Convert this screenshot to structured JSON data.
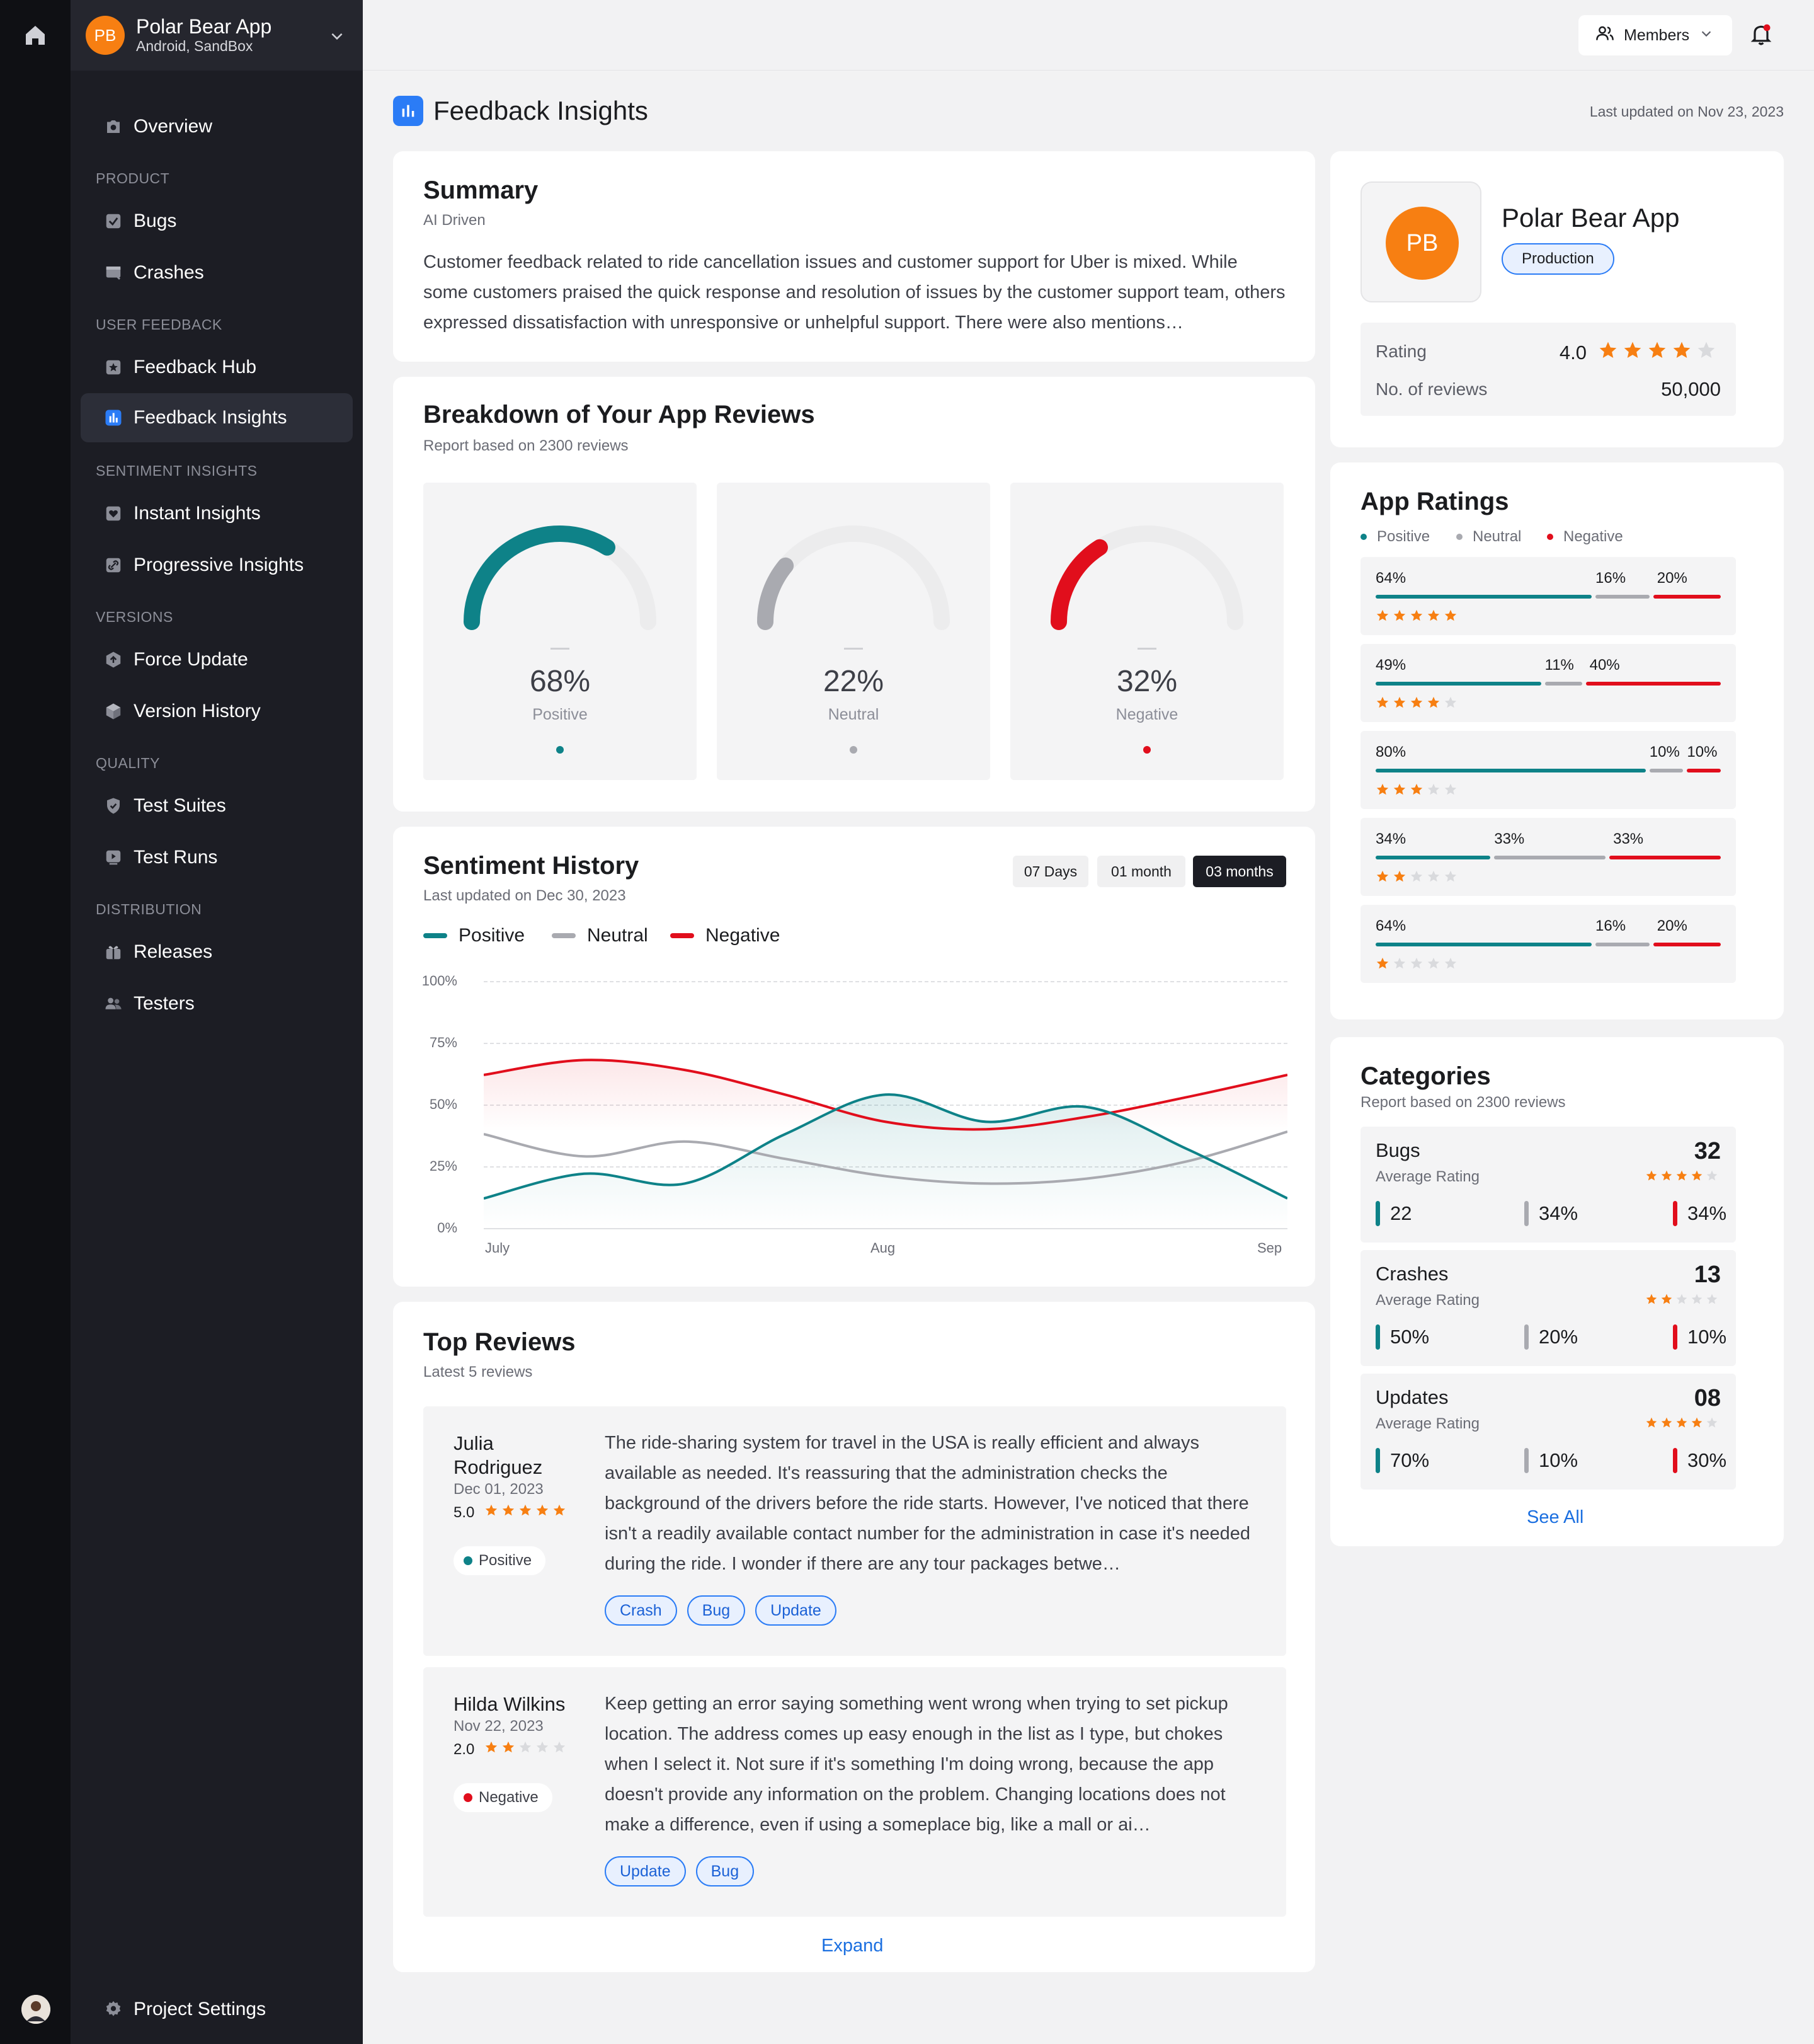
{
  "project": {
    "initials": "PB",
    "name": "Polar Bear App",
    "platform": "Android, SandBox"
  },
  "nav": {
    "overview": "Overview",
    "sections": {
      "product": "PRODUCT",
      "user_feedback": "USER FEEDBACK",
      "sentiment": "SENTIMENT INSIGHTS",
      "versions": "VERSIONS",
      "quality": "QUALITY",
      "distribution": "DISTRIBUTION"
    },
    "items": {
      "bugs": "Bugs",
      "crashes": "Crashes",
      "feedback_hub": "Feedback Hub",
      "feedback_insights": "Feedback Insights",
      "instant_insights": "Instant Insights",
      "progressive_insights": "Progressive Insights",
      "force_update": "Force Update",
      "version_history": "Version History",
      "test_suites": "Test Suites",
      "test_runs": "Test Runs",
      "releases": "Releases",
      "testers": "Testers"
    },
    "project_settings": "Project Settings",
    "active": "feedback_insights"
  },
  "topbar": {
    "members_label": "Members"
  },
  "page": {
    "title": "Feedback Insights",
    "last_updated": "Last updated on Nov 23, 2023"
  },
  "summary": {
    "title": "Summary",
    "subtitle": "AI Driven",
    "text": "Customer feedback related to ride cancellation issues and customer support for Uber is mixed. While some customers praised the quick response and resolution of issues by the customer support team, others expressed dissatisfaction with unresponsive or unhelpful support. There were also mentions…"
  },
  "breakdown": {
    "title": "Breakdown of Your App Reviews",
    "subtitle": "Report based on 2300 reviews",
    "gauges": [
      {
        "value": 68,
        "label_value": "68%",
        "label": "Positive",
        "color": "#0e8288"
      },
      {
        "value": 22,
        "label_value": "22%",
        "label": "Neutral",
        "color": "#a9aab0"
      },
      {
        "value": 32,
        "label_value": "32%",
        "label": "Negative",
        "color": "#e10e1c"
      }
    ]
  },
  "sentiment_history": {
    "title": "Sentiment History",
    "subtitle": "Last updated on Dec 30, 2023",
    "ranges": [
      "07 Days",
      "01 month",
      "03 months"
    ],
    "active_range": "03 months",
    "legend": [
      "Positive",
      "Neutral",
      "Negative"
    ]
  },
  "chart_data": {
    "type": "line",
    "title": "Sentiment History",
    "x": [
      "July",
      "",
      "",
      "",
      "Aug",
      "",
      "",
      "",
      "Sep"
    ],
    "x_ticks": [
      "July",
      "Aug",
      "Sep"
    ],
    "y_ticks": [
      "100%",
      "75%",
      "50%",
      "25%",
      "0%"
    ],
    "ylim": [
      0,
      100
    ],
    "grid": true,
    "legend_position": "top-left",
    "series": [
      {
        "name": "Positive",
        "color": "#0e8288",
        "values": [
          12,
          22,
          18,
          38,
          54,
          43,
          49,
          32,
          12
        ]
      },
      {
        "name": "Neutral",
        "color": "#a9aab0",
        "values": [
          38,
          29,
          35,
          28,
          21,
          18,
          20,
          27,
          39
        ]
      },
      {
        "name": "Negative",
        "color": "#e10e1c",
        "values": [
          62,
          68,
          64,
          54,
          43,
          40,
          45,
          53,
          62
        ]
      }
    ]
  },
  "top_reviews": {
    "title": "Top Reviews",
    "subtitle": "Latest 5 reviews",
    "expand_label": "Expand",
    "reviews": [
      {
        "author": "Julia Rodriguez",
        "date": "Dec 01, 2023",
        "score": "5.0",
        "stars": 5,
        "sentiment": "Positive",
        "sentiment_color": "#0e8288",
        "text": "The ride-sharing system for travel in the USA is really efficient and always available as needed. It's reassuring that the administration checks the background of the drivers before the ride starts. However, I've noticed that there isn't a readily available contact number for the administration in case it's needed during the ride. I wonder if there are any tour packages betwe…",
        "tags": [
          "Crash",
          "Bug",
          "Update"
        ]
      },
      {
        "author": "Hilda Wilkins",
        "date": "Nov 22, 2023",
        "score": "2.0",
        "stars": 2,
        "sentiment": "Negative",
        "sentiment_color": "#e10e1c",
        "text": "Keep getting an error saying something went wrong when trying to set pickup location. The address comes up easy enough in the list as I type, but chokes when I select it. Not sure if it's something I'm doing wrong, because the app doesn't provide any information on the problem. Changing locations does not make a difference, even if using a someplace big, like a mall or ai…",
        "tags": [
          "Update",
          "Bug"
        ]
      }
    ]
  },
  "app_card": {
    "initials": "PB",
    "name": "Polar Bear App",
    "env": "Production",
    "rating_label": "Rating",
    "rating_value": "4.0",
    "rating_stars": 4,
    "reviews_label": "No. of reviews",
    "reviews_value": "50,000"
  },
  "app_ratings": {
    "title": "App Ratings",
    "legend": [
      "Positive",
      "Neutral",
      "Negative"
    ],
    "rows": [
      {
        "stars": 5,
        "positive": 64,
        "neutral": 16,
        "negative": 20,
        "labels": [
          "64%",
          "16%",
          "20%"
        ]
      },
      {
        "stars": 4,
        "positive": 49,
        "neutral": 11,
        "negative": 40,
        "labels": [
          "49%",
          "11%",
          "40%"
        ]
      },
      {
        "stars": 3,
        "positive": 80,
        "neutral": 10,
        "negative": 10,
        "labels": [
          "80%",
          "10%",
          "10%"
        ]
      },
      {
        "stars": 2,
        "positive": 34,
        "neutral": 33,
        "negative": 33,
        "labels": [
          "34%",
          "33%",
          "33%"
        ]
      },
      {
        "stars": 1,
        "positive": 64,
        "neutral": 16,
        "negative": 20,
        "labels": [
          "64%",
          "16%",
          "20%"
        ]
      }
    ]
  },
  "categories": {
    "title": "Categories",
    "subtitle": "Report based on 2300 reviews",
    "avg_label": "Average Rating",
    "see_all": "See All",
    "rows": [
      {
        "name": "Bugs",
        "count": "32",
        "stars": 4,
        "positive": "22",
        "neutral": "34%",
        "negative": "34%"
      },
      {
        "name": "Crashes",
        "count": "13",
        "stars": 2,
        "positive": "50%",
        "neutral": "20%",
        "negative": "10%"
      },
      {
        "name": "Updates",
        "count": "08",
        "stars": 4,
        "positive": "70%",
        "neutral": "10%",
        "negative": "30%"
      }
    ]
  },
  "colors": {
    "positive": "#0e8288",
    "neutral": "#a9aab0",
    "negative": "#e10e1c",
    "accent": "#2b7cf6",
    "brand": "#f77f12",
    "star": "#f77f12",
    "star_empty": "#d9dadd"
  }
}
